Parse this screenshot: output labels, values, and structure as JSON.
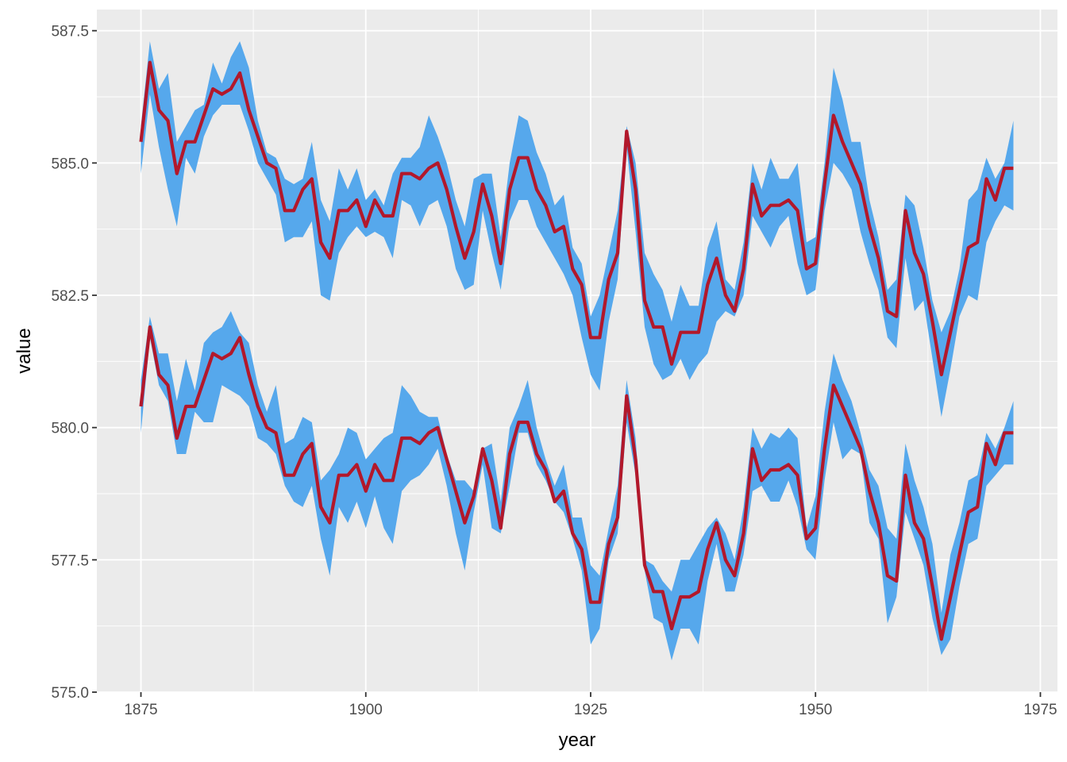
{
  "chart_data": {
    "type": "line",
    "title": "",
    "xlabel": "year",
    "ylabel": "value",
    "xlim": [
      1870.1,
      1976.9
    ],
    "ylim": [
      575.0,
      587.9
    ],
    "x_ticks": [
      1875,
      1900,
      1925,
      1950,
      1975
    ],
    "x_tick_labels": [
      "1875",
      "1900",
      "1925",
      "1950",
      "1975"
    ],
    "y_ticks": [
      575.0,
      577.5,
      580.0,
      582.5,
      585.0,
      587.5
    ],
    "y_tick_labels": [
      "575.0",
      "577.5",
      "580.0",
      "582.5",
      "585.0",
      "587.5"
    ],
    "grid": true,
    "legend": "none",
    "colors": {
      "panel": "#ebebeb",
      "grid": "#ffffff",
      "ribbon": "#56a8ec",
      "line": "#b2182b"
    },
    "x": [
      1875,
      1876,
      1877,
      1878,
      1879,
      1880,
      1881,
      1882,
      1883,
      1884,
      1885,
      1886,
      1887,
      1888,
      1889,
      1890,
      1891,
      1892,
      1893,
      1894,
      1895,
      1896,
      1897,
      1898,
      1899,
      1900,
      1901,
      1902,
      1903,
      1904,
      1905,
      1906,
      1907,
      1908,
      1909,
      1910,
      1911,
      1912,
      1913,
      1914,
      1915,
      1916,
      1917,
      1918,
      1919,
      1920,
      1921,
      1922,
      1923,
      1924,
      1925,
      1926,
      1927,
      1928,
      1929,
      1930,
      1931,
      1932,
      1933,
      1934,
      1935,
      1936,
      1937,
      1938,
      1939,
      1940,
      1941,
      1942,
      1943,
      1944,
      1945,
      1946,
      1947,
      1948,
      1949,
      1950,
      1951,
      1952,
      1953,
      1954,
      1955,
      1956,
      1957,
      1958,
      1959,
      1960,
      1961,
      1962,
      1963,
      1964,
      1965,
      1966,
      1967,
      1968,
      1969,
      1970,
      1971,
      1972
    ],
    "series": [
      {
        "values": [
          585.4,
          586.9,
          586.0,
          585.8,
          584.8,
          585.4,
          585.4,
          585.9,
          586.4,
          586.3,
          586.4,
          586.7,
          586.0,
          585.5,
          585.0,
          584.9,
          584.1,
          584.1,
          584.5,
          584.7,
          583.5,
          583.2,
          584.1,
          584.1,
          584.3,
          583.8,
          584.3,
          584.0,
          584.0,
          584.8,
          584.8,
          584.7,
          584.9,
          585.0,
          584.5,
          583.8,
          583.2,
          583.7,
          584.6,
          584.0,
          583.1,
          584.5,
          585.1,
          585.1,
          584.5,
          584.2,
          583.7,
          583.8,
          583.0,
          582.7,
          581.7,
          581.7,
          582.8,
          583.3,
          585.6,
          584.5,
          582.4,
          581.9,
          581.9,
          581.2,
          581.8,
          581.8,
          581.8,
          582.7,
          583.2,
          582.5,
          582.2,
          583.0,
          584.6,
          584.0,
          584.2,
          584.2,
          584.3,
          584.1,
          583.0,
          583.1,
          584.6,
          585.9,
          585.4,
          585.0,
          584.6,
          583.8,
          583.2,
          582.2,
          582.1,
          584.1,
          583.3,
          582.9,
          582.0,
          581.0,
          581.8,
          582.6,
          583.4,
          583.5,
          584.7,
          584.3,
          584.9,
          584.9
        ],
        "lower": [
          584.8,
          586.3,
          585.3,
          584.5,
          583.8,
          585.1,
          584.8,
          585.5,
          585.9,
          586.1,
          586.1,
          586.1,
          585.6,
          585.0,
          584.7,
          584.4,
          583.5,
          583.6,
          583.6,
          583.9,
          582.5,
          582.4,
          583.3,
          583.6,
          583.8,
          583.6,
          583.7,
          583.6,
          583.2,
          584.3,
          584.2,
          583.8,
          584.2,
          584.3,
          583.8,
          583.0,
          582.6,
          582.7,
          584.1,
          583.3,
          582.6,
          583.9,
          584.3,
          584.3,
          583.8,
          583.5,
          583.2,
          582.9,
          582.5,
          581.7,
          581.0,
          580.7,
          582.0,
          582.8,
          585.3,
          583.7,
          581.9,
          581.2,
          580.9,
          581.0,
          581.3,
          580.9,
          581.2,
          581.4,
          582.0,
          582.2,
          582.1,
          582.5,
          584.0,
          583.7,
          583.4,
          583.8,
          584.0,
          583.1,
          582.5,
          582.6,
          584.1,
          585.0,
          584.8,
          584.5,
          583.7,
          583.1,
          582.6,
          581.7,
          581.5,
          583.2,
          582.2,
          582.4,
          581.3,
          580.2,
          581.1,
          582.1,
          582.5,
          582.4,
          583.5,
          583.9,
          584.2,
          584.1
        ],
        "upper": [
          585.7,
          587.3,
          586.4,
          586.7,
          585.4,
          585.7,
          586.0,
          586.1,
          586.9,
          586.5,
          587.0,
          587.3,
          586.8,
          585.8,
          585.2,
          585.1,
          584.7,
          584.6,
          584.7,
          585.4,
          584.3,
          583.9,
          584.9,
          584.5,
          584.9,
          584.3,
          584.5,
          584.2,
          584.8,
          585.1,
          585.1,
          585.3,
          585.9,
          585.5,
          585.0,
          584.3,
          583.8,
          584.7,
          584.8,
          584.8,
          583.6,
          585.0,
          585.9,
          585.8,
          585.2,
          584.8,
          584.2,
          584.4,
          583.4,
          583.1,
          582.1,
          582.5,
          583.3,
          584.1,
          585.7,
          585.0,
          583.3,
          582.9,
          582.6,
          582.0,
          582.7,
          582.3,
          582.3,
          583.4,
          583.9,
          582.8,
          582.6,
          583.5,
          585.0,
          584.5,
          585.1,
          584.7,
          584.7,
          585.0,
          583.5,
          583.6,
          585.0,
          586.8,
          586.2,
          585.4,
          585.4,
          584.3,
          583.6,
          582.6,
          582.8,
          584.4,
          584.2,
          583.4,
          582.4,
          581.8,
          582.2,
          583.0,
          584.3,
          584.5,
          585.1,
          584.7,
          585.0,
          585.8
        ]
      },
      {
        "values": [
          580.4,
          581.9,
          581.0,
          580.8,
          579.8,
          580.4,
          580.4,
          580.9,
          581.4,
          581.3,
          581.4,
          581.7,
          581.0,
          580.4,
          580.0,
          579.9,
          579.1,
          579.1,
          579.5,
          579.7,
          578.5,
          578.2,
          579.1,
          579.1,
          579.3,
          578.8,
          579.3,
          579.0,
          579.0,
          579.8,
          579.8,
          579.7,
          579.9,
          580.0,
          579.4,
          578.8,
          578.2,
          578.7,
          579.6,
          579.0,
          578.1,
          579.5,
          580.1,
          580.1,
          579.5,
          579.2,
          578.6,
          578.8,
          578.0,
          577.7,
          576.7,
          576.7,
          577.8,
          578.3,
          580.6,
          579.4,
          577.4,
          576.9,
          576.9,
          576.2,
          576.8,
          576.8,
          576.9,
          577.7,
          578.2,
          577.5,
          577.2,
          578.0,
          579.6,
          579.0,
          579.2,
          579.2,
          579.3,
          579.1,
          577.9,
          578.1,
          579.6,
          580.8,
          580.4,
          580.0,
          579.6,
          578.8,
          578.2,
          577.2,
          577.1,
          579.1,
          578.2,
          577.9,
          577.0,
          576.0,
          576.8,
          577.6,
          578.4,
          578.5,
          579.7,
          579.3,
          579.9,
          579.9
        ],
        "lower": [
          579.9,
          581.7,
          580.8,
          580.5,
          579.5,
          579.5,
          580.3,
          580.1,
          580.1,
          580.8,
          580.7,
          580.6,
          580.4,
          579.8,
          579.7,
          579.5,
          578.9,
          578.6,
          578.5,
          578.9,
          577.9,
          577.2,
          578.5,
          578.2,
          578.6,
          578.1,
          578.7,
          578.1,
          577.8,
          578.8,
          579.0,
          579.1,
          579.3,
          579.6,
          578.9,
          578.0,
          577.3,
          578.4,
          579.3,
          578.1,
          578.0,
          578.9,
          579.9,
          579.9,
          579.3,
          579.0,
          578.6,
          578.4,
          577.9,
          577.3,
          575.9,
          576.2,
          577.5,
          578.0,
          580.1,
          579.1,
          577.3,
          576.4,
          576.3,
          575.6,
          576.2,
          576.2,
          575.9,
          577.1,
          577.8,
          576.9,
          576.9,
          577.6,
          578.8,
          578.9,
          578.6,
          578.6,
          579.0,
          578.5,
          577.7,
          577.5,
          579.0,
          580.1,
          579.4,
          579.6,
          579.5,
          578.2,
          577.9,
          576.3,
          576.8,
          578.4,
          577.9,
          577.4,
          576.4,
          575.7,
          576.0,
          577.0,
          577.8,
          577.9,
          578.9,
          579.1,
          579.3,
          579.3
        ],
        "upper": [
          580.9,
          582.1,
          581.4,
          581.4,
          580.5,
          581.3,
          580.7,
          581.6,
          581.8,
          581.9,
          582.2,
          581.8,
          581.6,
          580.8,
          580.3,
          580.8,
          579.7,
          579.8,
          580.2,
          580.1,
          579.0,
          579.2,
          579.5,
          580.0,
          579.9,
          579.4,
          579.6,
          579.8,
          579.9,
          580.8,
          580.6,
          580.3,
          580.2,
          580.2,
          579.5,
          579.0,
          579.0,
          578.8,
          579.6,
          579.7,
          578.6,
          580.0,
          580.4,
          580.9,
          580.0,
          579.4,
          578.9,
          579.3,
          578.3,
          578.3,
          577.4,
          577.2,
          578.1,
          578.9,
          580.9,
          579.8,
          577.5,
          577.4,
          577.1,
          576.9,
          577.5,
          577.5,
          577.8,
          578.1,
          578.3,
          578.0,
          577.5,
          578.5,
          580.0,
          579.6,
          579.9,
          579.8,
          580.0,
          579.8,
          578.1,
          578.7,
          580.3,
          581.4,
          580.9,
          580.5,
          579.9,
          579.2,
          578.9,
          578.1,
          577.9,
          579.7,
          579.0,
          578.5,
          577.8,
          576.5,
          577.6,
          578.2,
          579.0,
          579.1,
          579.9,
          579.6,
          580.0,
          580.5
        ]
      }
    ]
  }
}
